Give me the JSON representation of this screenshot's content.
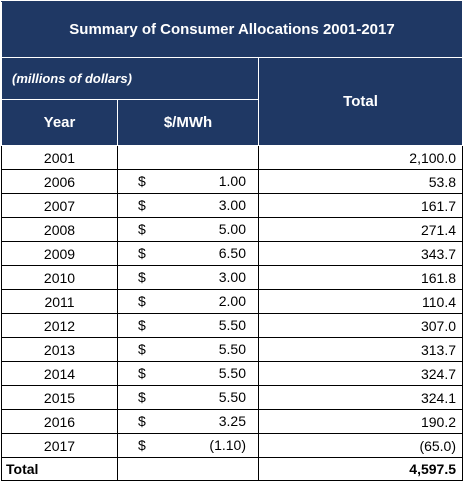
{
  "title": "Summary of Consumer Allocations 2001-2017",
  "units": "(millions of dollars)",
  "headers": {
    "year": "Year",
    "rate": "$/MWh",
    "total": "Total"
  },
  "currency_symbol": "$",
  "rows": [
    {
      "year": "2001",
      "rate": "",
      "total": "2,100.0"
    },
    {
      "year": "2006",
      "rate": "1.00",
      "total": "53.8"
    },
    {
      "year": "2007",
      "rate": "3.00",
      "total": "161.7"
    },
    {
      "year": "2008",
      "rate": "5.00",
      "total": "271.4"
    },
    {
      "year": "2009",
      "rate": "6.50",
      "total": "343.7"
    },
    {
      "year": "2010",
      "rate": "3.00",
      "total": "161.8"
    },
    {
      "year": "2011",
      "rate": "2.00",
      "total": "110.4"
    },
    {
      "year": "2012",
      "rate": "5.50",
      "total": "307.0"
    },
    {
      "year": "2013",
      "rate": "5.50",
      "total": "313.7"
    },
    {
      "year": "2014",
      "rate": "5.50",
      "total": "324.7"
    },
    {
      "year": "2015",
      "rate": "5.50",
      "total": "324.1"
    },
    {
      "year": "2016",
      "rate": "3.25",
      "total": "190.2"
    },
    {
      "year": "2017",
      "rate": "(1.10)",
      "total": "(65.0)"
    }
  ],
  "grand_total": {
    "label": "Total",
    "value": "4,597.5"
  },
  "colors": {
    "header_bg": "#1f3864",
    "header_text": "#ffffff"
  }
}
